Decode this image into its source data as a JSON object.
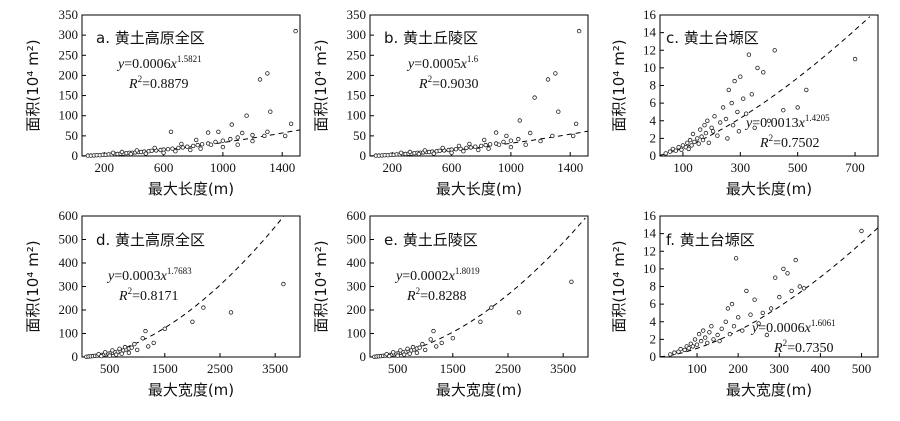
{
  "chart_data": [
    {
      "type": "scatter",
      "title": "a. 黄土高原全区",
      "xlabel": "最大长度(m)",
      "ylabel": "面积(10⁴ m²)",
      "xlim": [
        50,
        1520
      ],
      "ylim": [
        0,
        350
      ],
      "xticks": [
        200,
        600,
        1000,
        1400
      ],
      "yticks": [
        0,
        50,
        100,
        150,
        200,
        250,
        300,
        350
      ],
      "fit": {
        "a": 0.0006,
        "b": 1.5821,
        "eq_prefix": "=0.0006",
        "exp": "1.5821",
        "r2_value": "=0.8879"
      },
      "points": [
        [
          90,
          1
        ],
        [
          110,
          1
        ],
        [
          130,
          1.5
        ],
        [
          150,
          2
        ],
        [
          170,
          2
        ],
        [
          190,
          3
        ],
        [
          210,
          3
        ],
        [
          230,
          4
        ],
        [
          250,
          4
        ],
        [
          270,
          5
        ],
        [
          290,
          5
        ],
        [
          310,
          6
        ],
        [
          330,
          6
        ],
        [
          350,
          7
        ],
        [
          370,
          8
        ],
        [
          390,
          8
        ],
        [
          410,
          9
        ],
        [
          430,
          10
        ],
        [
          450,
          10
        ],
        [
          470,
          11
        ],
        [
          500,
          12
        ],
        [
          520,
          13
        ],
        [
          550,
          14
        ],
        [
          580,
          15
        ],
        [
          600,
          16
        ],
        [
          630,
          17
        ],
        [
          660,
          18
        ],
        [
          700,
          20
        ],
        [
          730,
          21
        ],
        [
          760,
          23
        ],
        [
          800,
          25
        ],
        [
          830,
          27
        ],
        [
          860,
          29
        ],
        [
          900,
          31
        ],
        [
          950,
          35
        ],
        [
          1000,
          38
        ],
        [
          1050,
          42
        ],
        [
          1100,
          46
        ],
        [
          1200,
          52
        ],
        [
          1300,
          60
        ],
        [
          260,
          8
        ],
        [
          320,
          10
        ],
        [
          380,
          5
        ],
        [
          420,
          14
        ],
        [
          480,
          6
        ],
        [
          540,
          20
        ],
        [
          600,
          8
        ],
        [
          650,
          60
        ],
        [
          680,
          12
        ],
        [
          720,
          30
        ],
        [
          780,
          15
        ],
        [
          820,
          40
        ],
        [
          850,
          18
        ],
        [
          900,
          58
        ],
        [
          920,
          28
        ],
        [
          970,
          60
        ],
        [
          1000,
          22
        ],
        [
          1060,
          78
        ],
        [
          1100,
          28
        ],
        [
          1130,
          57
        ],
        [
          1160,
          100
        ],
        [
          1200,
          37
        ],
        [
          1250,
          190
        ],
        [
          1280,
          50
        ],
        [
          1300,
          205
        ],
        [
          1320,
          110
        ],
        [
          1420,
          50
        ],
        [
          1460,
          80
        ],
        [
          1490,
          310
        ]
      ]
    },
    {
      "type": "scatter",
      "title": "b. 黄土丘陵区",
      "xlabel": "最大长度(m)",
      "ylabel": "面积(10⁴ m²)",
      "xlim": [
        50,
        1520
      ],
      "ylim": [
        0,
        350
      ],
      "xticks": [
        200,
        600,
        1000,
        1400
      ],
      "yticks": [
        0,
        50,
        100,
        150,
        200,
        250,
        300,
        350
      ],
      "fit": {
        "a": 0.0005,
        "b": 1.6,
        "eq_prefix": "=0.0005",
        "exp": "1.6",
        "r2_value": "=0.9030"
      },
      "points": [
        [
          90,
          1
        ],
        [
          110,
          1
        ],
        [
          130,
          1.5
        ],
        [
          150,
          2
        ],
        [
          170,
          2
        ],
        [
          190,
          3
        ],
        [
          210,
          3
        ],
        [
          230,
          4
        ],
        [
          250,
          4
        ],
        [
          270,
          5
        ],
        [
          290,
          5
        ],
        [
          310,
          6
        ],
        [
          330,
          6
        ],
        [
          350,
          7
        ],
        [
          370,
          8
        ],
        [
          390,
          8
        ],
        [
          410,
          9
        ],
        [
          430,
          10
        ],
        [
          450,
          10
        ],
        [
          470,
          11
        ],
        [
          500,
          12
        ],
        [
          520,
          13
        ],
        [
          550,
          14
        ],
        [
          580,
          15
        ],
        [
          600,
          16
        ],
        [
          630,
          17
        ],
        [
          660,
          18
        ],
        [
          700,
          20
        ],
        [
          730,
          21
        ],
        [
          760,
          23
        ],
        [
          800,
          25
        ],
        [
          830,
          27
        ],
        [
          860,
          29
        ],
        [
          900,
          31
        ],
        [
          950,
          35
        ],
        [
          1000,
          38
        ],
        [
          1050,
          42
        ],
        [
          260,
          8
        ],
        [
          320,
          10
        ],
        [
          380,
          5
        ],
        [
          420,
          14
        ],
        [
          480,
          6
        ],
        [
          540,
          20
        ],
        [
          600,
          8
        ],
        [
          650,
          25
        ],
        [
          680,
          12
        ],
        [
          720,
          30
        ],
        [
          780,
          15
        ],
        [
          820,
          40
        ],
        [
          850,
          18
        ],
        [
          900,
          58
        ],
        [
          920,
          28
        ],
        [
          970,
          50
        ],
        [
          1000,
          22
        ],
        [
          1060,
          88
        ],
        [
          1100,
          28
        ],
        [
          1130,
          57
        ],
        [
          1160,
          145
        ],
        [
          1200,
          37
        ],
        [
          1250,
          190
        ],
        [
          1280,
          50
        ],
        [
          1300,
          205
        ],
        [
          1320,
          110
        ],
        [
          1420,
          50
        ],
        [
          1440,
          80
        ],
        [
          1460,
          310
        ]
      ]
    },
    {
      "type": "scatter",
      "title": "c. 黄土台塬区",
      "xlabel": "最大长度(m)",
      "ylabel": "面积(10⁴ m²)",
      "xlim": [
        20,
        780
      ],
      "ylim": [
        0,
        16
      ],
      "xticks": [
        100,
        300,
        500,
        700
      ],
      "yticks": [
        0,
        2,
        4,
        6,
        8,
        10,
        12,
        14,
        16
      ],
      "fit": {
        "a": 0.0013,
        "b": 1.4205,
        "eq_prefix": "=0.0013",
        "exp": "1.4205",
        "r2_value": "=0.7502"
      },
      "points": [
        [
          40,
          0.3
        ],
        [
          55,
          0.5
        ],
        [
          65,
          0.8
        ],
        [
          75,
          0.6
        ],
        [
          85,
          1.0
        ],
        [
          95,
          0.7
        ],
        [
          100,
          1.2
        ],
        [
          110,
          1.0
        ],
        [
          115,
          1.5
        ],
        [
          120,
          0.8
        ],
        [
          125,
          1.8
        ],
        [
          130,
          1.2
        ],
        [
          135,
          2.5
        ],
        [
          140,
          1.6
        ],
        [
          150,
          2.0
        ],
        [
          155,
          1.4
        ],
        [
          160,
          3.0
        ],
        [
          165,
          2.2
        ],
        [
          170,
          1.8
        ],
        [
          175,
          3.5
        ],
        [
          180,
          2.6
        ],
        [
          185,
          4.0
        ],
        [
          190,
          1.5
        ],
        [
          200,
          3.2
        ],
        [
          205,
          2.8
        ],
        [
          210,
          4.5
        ],
        [
          220,
          2.3
        ],
        [
          230,
          3.8
        ],
        [
          240,
          5.5
        ],
        [
          250,
          4.2
        ],
        [
          255,
          2.0
        ],
        [
          260,
          7.5
        ],
        [
          270,
          6.0
        ],
        [
          275,
          3.5
        ],
        [
          280,
          8.5
        ],
        [
          290,
          5.0
        ],
        [
          295,
          2.8
        ],
        [
          300,
          9.0
        ],
        [
          310,
          6.5
        ],
        [
          320,
          4.8
        ],
        [
          330,
          11.5
        ],
        [
          340,
          7.0
        ],
        [
          350,
          3.2
        ],
        [
          360,
          10.0
        ],
        [
          380,
          9.5
        ],
        [
          400,
          4.0
        ],
        [
          420,
          12.0
        ],
        [
          450,
          5.2
        ],
        [
          500,
          5.5
        ],
        [
          530,
          7.5
        ],
        [
          700,
          11.0
        ]
      ]
    },
    {
      "type": "scatter",
      "title": "d. 黄土高原全区",
      "xlabel": "最大宽度(m)",
      "ylabel": "面积(10⁴ m²)",
      "xlim": [
        0,
        3950
      ],
      "ylim": [
        0,
        600
      ],
      "xticks": [
        500,
        1500,
        2500,
        3500
      ],
      "yticks": [
        0,
        100,
        200,
        300,
        400,
        500,
        600
      ],
      "fit": {
        "a": 0.0003,
        "b": 1.7683,
        "eq_prefix": "=0.0003",
        "exp": "1.7683",
        "r2_value": "=0.8171"
      },
      "points": [
        [
          80,
          1
        ],
        [
          120,
          2
        ],
        [
          160,
          3
        ],
        [
          200,
          4
        ],
        [
          240,
          5
        ],
        [
          280,
          6
        ],
        [
          320,
          7
        ],
        [
          360,
          9
        ],
        [
          400,
          10
        ],
        [
          440,
          12
        ],
        [
          480,
          14
        ],
        [
          520,
          16
        ],
        [
          560,
          18
        ],
        [
          600,
          20
        ],
        [
          650,
          22
        ],
        [
          700,
          25
        ],
        [
          750,
          28
        ],
        [
          800,
          32
        ],
        [
          850,
          36
        ],
        [
          900,
          40
        ],
        [
          300,
          12
        ],
        [
          350,
          4
        ],
        [
          420,
          20
        ],
        [
          500,
          6
        ],
        [
          550,
          28
        ],
        [
          620,
          10
        ],
        [
          680,
          35
        ],
        [
          720,
          14
        ],
        [
          780,
          42
        ],
        [
          850,
          18
        ],
        [
          950,
          55
        ],
        [
          1000,
          30
        ],
        [
          1100,
          80
        ],
        [
          1150,
          110
        ],
        [
          1200,
          45
        ],
        [
          1300,
          60
        ],
        [
          1500,
          120
        ],
        [
          2000,
          150
        ],
        [
          2200,
          210
        ],
        [
          2700,
          190
        ],
        [
          3650,
          310
        ]
      ]
    },
    {
      "type": "scatter",
      "title": "e. 黄土丘陵区",
      "xlabel": "最大宽度(m)",
      "ylabel": "面积(10⁴ m²)",
      "xlim": [
        0,
        3950
      ],
      "ylim": [
        0,
        600
      ],
      "xticks": [
        500,
        1500,
        2500,
        3500
      ],
      "yticks": [
        0,
        100,
        200,
        300,
        400,
        500,
        600
      ],
      "fit": {
        "a": 0.0002,
        "b": 1.8019,
        "eq_prefix": "=0.0002",
        "exp": "1.8019",
        "r2_value": "=0.8288"
      },
      "points": [
        [
          80,
          1
        ],
        [
          120,
          2
        ],
        [
          160,
          3
        ],
        [
          200,
          4
        ],
        [
          240,
          5
        ],
        [
          280,
          6
        ],
        [
          320,
          7
        ],
        [
          360,
          9
        ],
        [
          400,
          10
        ],
        [
          440,
          12
        ],
        [
          480,
          14
        ],
        [
          520,
          16
        ],
        [
          560,
          18
        ],
        [
          600,
          20
        ],
        [
          650,
          22
        ],
        [
          700,
          25
        ],
        [
          750,
          28
        ],
        [
          800,
          32
        ],
        [
          850,
          36
        ],
        [
          900,
          40
        ],
        [
          300,
          12
        ],
        [
          350,
          4
        ],
        [
          420,
          20
        ],
        [
          500,
          6
        ],
        [
          550,
          28
        ],
        [
          620,
          10
        ],
        [
          680,
          35
        ],
        [
          720,
          14
        ],
        [
          780,
          42
        ],
        [
          850,
          18
        ],
        [
          950,
          55
        ],
        [
          1000,
          30
        ],
        [
          1100,
          75
        ],
        [
          1150,
          110
        ],
        [
          1200,
          45
        ],
        [
          1300,
          60
        ],
        [
          1500,
          80
        ],
        [
          2000,
          150
        ],
        [
          2200,
          210
        ],
        [
          2700,
          190
        ],
        [
          3650,
          320
        ]
      ]
    },
    {
      "type": "scatter",
      "title": "f. 黄土台塬区",
      "xlabel": "最大宽度(m)",
      "ylabel": "面积(10⁴ m²)",
      "xlim": [
        10,
        540
      ],
      "ylim": [
        0,
        16
      ],
      "xticks": [
        100,
        200,
        300,
        400,
        500
      ],
      "yticks": [
        0,
        2,
        4,
        6,
        8,
        10,
        12,
        14,
        16
      ],
      "fit": {
        "a": 0.0006,
        "b": 1.6061,
        "eq_prefix": "=0.0006",
        "exp": "1.6061",
        "r2_value": "=0.7350"
      },
      "points": [
        [
          35,
          0.3
        ],
        [
          45,
          0.5
        ],
        [
          55,
          0.6
        ],
        [
          60,
          0.9
        ],
        [
          70,
          0.8
        ],
        [
          75,
          1.2
        ],
        [
          80,
          1.0
        ],
        [
          85,
          1.5
        ],
        [
          90,
          1.2
        ],
        [
          95,
          2.0
        ],
        [
          100,
          1.4
        ],
        [
          105,
          2.6
        ],
        [
          110,
          1.8
        ],
        [
          115,
          3.0
        ],
        [
          120,
          2.2
        ],
        [
          125,
          1.6
        ],
        [
          130,
          2.8
        ],
        [
          135,
          3.5
        ],
        [
          140,
          2.0
        ],
        [
          150,
          2.5
        ],
        [
          155,
          1.8
        ],
        [
          160,
          3.2
        ],
        [
          170,
          4.0
        ],
        [
          175,
          5.5
        ],
        [
          180,
          2.6
        ],
        [
          185,
          6.0
        ],
        [
          190,
          3.5
        ],
        [
          195,
          11.2
        ],
        [
          200,
          4.5
        ],
        [
          210,
          3.0
        ],
        [
          220,
          7.5
        ],
        [
          230,
          4.8
        ],
        [
          240,
          6.5
        ],
        [
          250,
          3.8
        ],
        [
          260,
          5.0
        ],
        [
          270,
          2.5
        ],
        [
          280,
          5.5
        ],
        [
          290,
          9.0
        ],
        [
          300,
          6.8
        ],
        [
          310,
          10.0
        ],
        [
          320,
          9.5
        ],
        [
          330,
          7.5
        ],
        [
          340,
          11.0
        ],
        [
          350,
          8.0
        ],
        [
          360,
          7.8
        ],
        [
          500,
          14.3
        ]
      ]
    }
  ]
}
